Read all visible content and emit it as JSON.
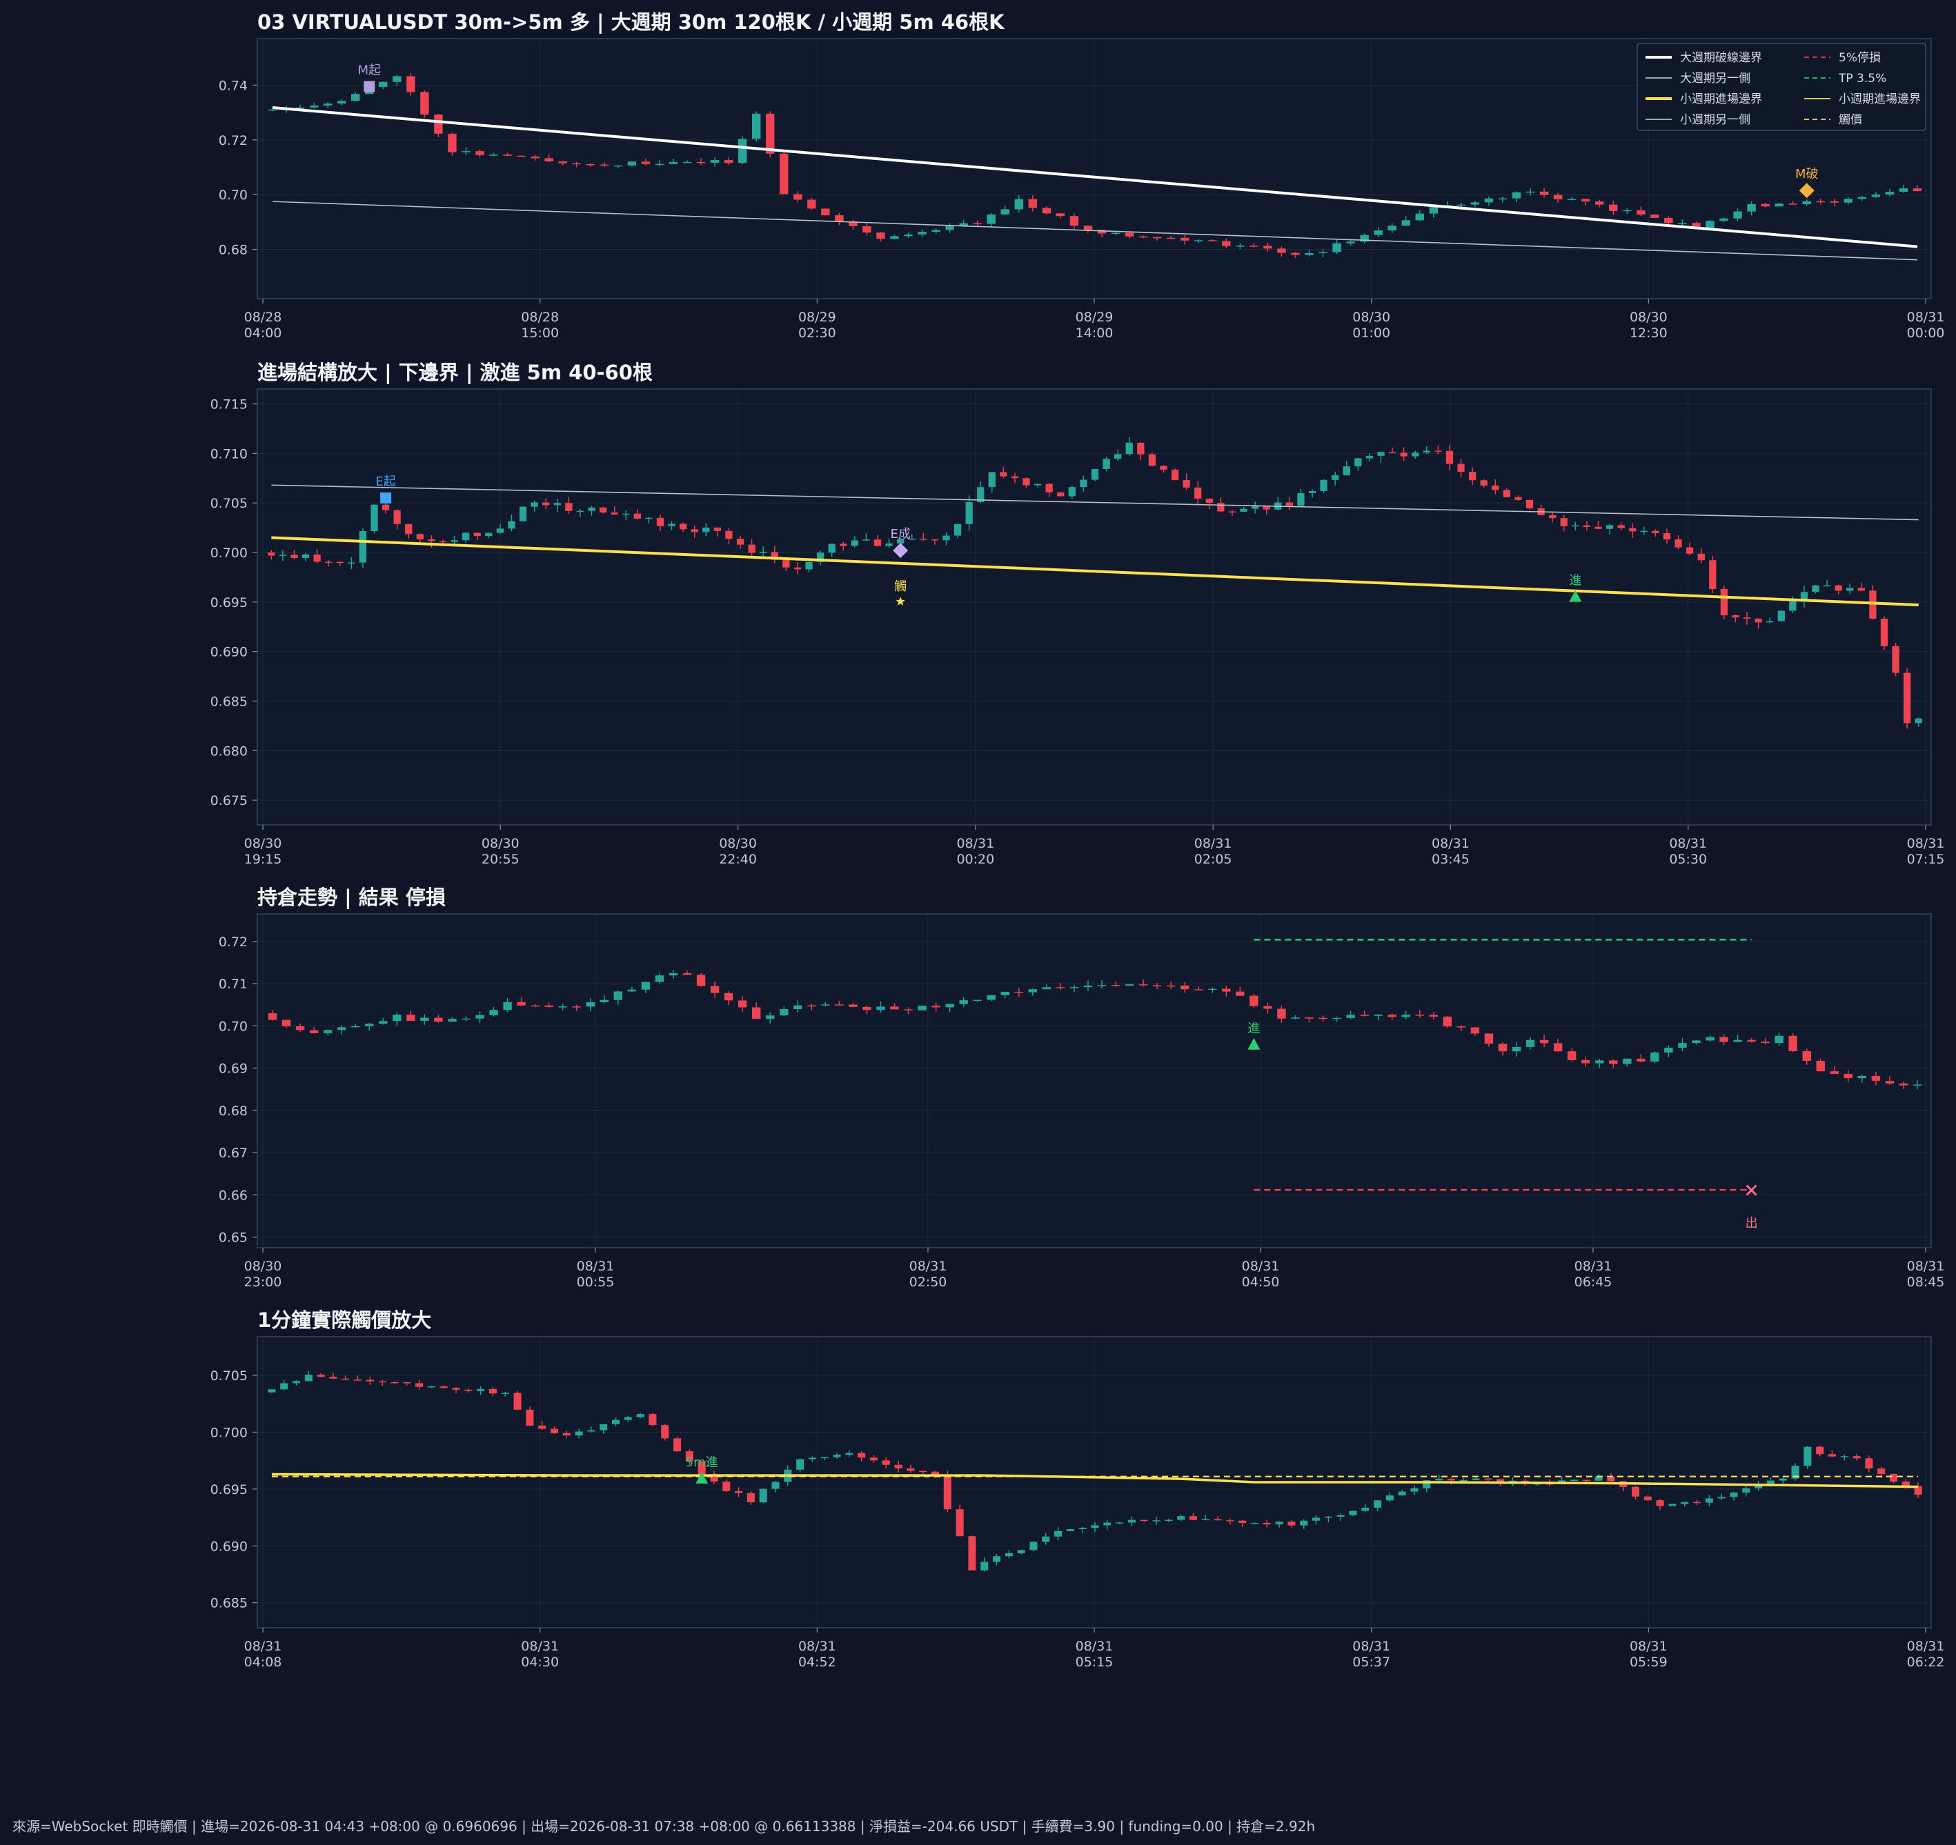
{
  "colors": {
    "background": "#0d1526",
    "panel": "#111a2c",
    "frame": "#3a4459",
    "grid": "#1f2a3e",
    "text": "#c3c8d2",
    "up": "#26a69a",
    "down": "#ef4350",
    "big_break": "#ffffff",
    "big_other": "#b9bec8",
    "small_entry": "#ffe14d",
    "stop": "#ef4350",
    "tp": "#2ecc71",
    "trigger": "#ffe14d",
    "entry_mark": "#2ecc71",
    "big_start_mark": "#b39ddb",
    "small_start_mark": "#42a5f5",
    "small_done_mark": "#c5a9f5",
    "exit_mark": "#ff6b8a",
    "big_done_mark": "#f5b041"
  },
  "footer": "來源=WebSocket 即時觸價 | 進場=2026-08-31 04:43 +08:00 @ 0.6960696 | 出場=2026-08-31 07:38 +08:00 @ 0.66113388 | 淨損益=-204.66 USDT | 手續費=3.90 | funding=0.00 | 持倉=2.92h",
  "chart_data": [
    {
      "type": "candlestick",
      "title": "03 VIRTUALUSDT 30m->5m 多 | 大週期 30m 120根K / 小週期 5m 46根K",
      "ylim": [
        0.662,
        0.757
      ],
      "yticks": [
        "0.68",
        "0.70",
        "0.72",
        "0.74"
      ],
      "xticks": [
        [
          "08/28",
          "04:00"
        ],
        [
          "08/28",
          "15:00"
        ],
        [
          "08/29",
          "02:30"
        ],
        [
          "08/29",
          "14:00"
        ],
        [
          "08/30",
          "01:00"
        ],
        [
          "08/30",
          "12:30"
        ],
        [
          "08/31",
          "00:00"
        ]
      ],
      "candle_count": 120,
      "seed": 11,
      "anchors": [
        [
          0,
          0.731
        ],
        [
          6,
          0.734
        ],
        [
          10,
          0.744
        ],
        [
          14,
          0.716
        ],
        [
          24,
          0.711
        ],
        [
          34,
          0.712
        ],
        [
          36,
          0.73
        ],
        [
          38,
          0.7
        ],
        [
          45,
          0.684
        ],
        [
          52,
          0.69
        ],
        [
          55,
          0.698
        ],
        [
          60,
          0.687
        ],
        [
          70,
          0.682
        ],
        [
          76,
          0.678
        ],
        [
          80,
          0.685
        ],
        [
          85,
          0.695
        ],
        [
          92,
          0.701
        ],
        [
          96,
          0.697
        ],
        [
          104,
          0.688
        ],
        [
          108,
          0.696
        ],
        [
          113,
          0.697
        ],
        [
          119,
          0.702
        ]
      ],
      "lines": [
        {
          "name": "大週期破線邊界",
          "from": [
            0,
            0.7318
          ],
          "to": [
            119,
            0.681
          ],
          "color": "#ffffff",
          "width": 4
        },
        {
          "name": "大週期另一側",
          "from": [
            0,
            0.6975
          ],
          "to": [
            119,
            0.6762
          ],
          "color": "#b9bec8",
          "width": 1.6
        }
      ],
      "markers": [
        {
          "label": "M起",
          "shape": "square",
          "index": 7,
          "price": 0.7395,
          "color": "#b39ddb"
        },
        {
          "label": "M破",
          "shape": "diamond",
          "index": 111,
          "price": 0.7015,
          "color": "#f5b041"
        }
      ],
      "legend": {
        "entries": [
          {
            "label": "大週期破線邊界",
            "color": "#ffffff",
            "style": "solid-thick"
          },
          {
            "label": "5%停損",
            "color": "#ef4350",
            "style": "dashed"
          },
          {
            "label": "大週期另一側",
            "color": "#b9bec8",
            "style": "solid"
          },
          {
            "label": "TP 3.5%",
            "color": "#2ecc71",
            "style": "dashed"
          },
          {
            "label": "小週期進場邊界",
            "color": "#ffe14d",
            "style": "solid-thick"
          },
          {
            "label": "小週期進場邊界",
            "color": "#ffe14d",
            "style": "solid"
          },
          {
            "label": "小週期另一側",
            "color": "#b9bec8",
            "style": "solid"
          },
          {
            "label": "觸價",
            "color": "#ffe14d",
            "style": "dashed"
          }
        ],
        "placement": "top-right"
      }
    },
    {
      "type": "candlestick",
      "title": "進場結構放大 | 下邊界 | 激進 5m 40-60根",
      "ylim": [
        0.6725,
        0.7165
      ],
      "yticks": [
        "0.675",
        "0.680",
        "0.685",
        "0.690",
        "0.695",
        "0.700",
        "0.705",
        "0.710",
        "0.715"
      ],
      "xticks": [
        [
          "08/30",
          "19:15"
        ],
        [
          "08/30",
          "20:55"
        ],
        [
          "08/30",
          "22:40"
        ],
        [
          "08/31",
          "00:20"
        ],
        [
          "08/31",
          "02:05"
        ],
        [
          "08/31",
          "03:45"
        ],
        [
          "08/31",
          "05:30"
        ],
        [
          "08/31",
          "07:15"
        ]
      ],
      "candle_count": 145,
      "seed": 23,
      "anchors": [
        [
          0,
          0.7
        ],
        [
          8,
          0.699
        ],
        [
          10,
          0.705
        ],
        [
          14,
          0.701
        ],
        [
          20,
          0.702
        ],
        [
          24,
          0.705
        ],
        [
          30,
          0.704
        ],
        [
          40,
          0.702
        ],
        [
          47,
          0.698
        ],
        [
          50,
          0.701
        ],
        [
          56,
          0.701
        ],
        [
          60,
          0.7015
        ],
        [
          64,
          0.708
        ],
        [
          70,
          0.706
        ],
        [
          76,
          0.711
        ],
        [
          80,
          0.707
        ],
        [
          84,
          0.704
        ],
        [
          90,
          0.705
        ],
        [
          97,
          0.71
        ],
        [
          103,
          0.71
        ],
        [
          108,
          0.706
        ],
        [
          114,
          0.703
        ],
        [
          122,
          0.702
        ],
        [
          126,
          0.699
        ],
        [
          128,
          0.694
        ],
        [
          132,
          0.693
        ],
        [
          136,
          0.697
        ],
        [
          140,
          0.696
        ],
        [
          143,
          0.688
        ],
        [
          144,
          0.683
        ]
      ],
      "lines": [
        {
          "name": "小週期另一側",
          "from": [
            0,
            0.7068
          ],
          "to": [
            144,
            0.7033
          ],
          "color": "#b9bec8",
          "width": 1.6
        },
        {
          "name": "小週期進場邊界",
          "from": [
            0,
            0.7015
          ],
          "to": [
            144,
            0.6947
          ],
          "color": "#ffe14d",
          "width": 4
        }
      ],
      "markers": [
        {
          "label": "E起",
          "shape": "square",
          "index": 10,
          "price": 0.7055,
          "color": "#42a5f5"
        },
        {
          "label": "E成",
          "shape": "diamond",
          "index": 55,
          "price": 0.7002,
          "color": "#c5a9f5"
        },
        {
          "label": "觸",
          "shape": "star",
          "index": 55,
          "price": 0.6963,
          "color": "#ffe14d"
        },
        {
          "label": "進",
          "shape": "triangle",
          "index": 114,
          "price": 0.6955,
          "color": "#2ecc71"
        }
      ]
    },
    {
      "type": "candlestick",
      "title": "持倉走勢 | 結果 停損",
      "ylim": [
        0.6475,
        0.7265
      ],
      "yticks": [
        "0.65",
        "0.66",
        "0.67",
        "0.68",
        "0.69",
        "0.70",
        "0.71",
        "0.72"
      ],
      "xticks": [
        [
          "08/30",
          "23:00"
        ],
        [
          "08/31",
          "00:55"
        ],
        [
          "08/31",
          "02:50"
        ],
        [
          "08/31",
          "04:50"
        ],
        [
          "08/31",
          "06:45"
        ],
        [
          "08/31",
          "08:45"
        ]
      ],
      "candle_count": 120,
      "seed": 37,
      "anchors": [
        [
          0,
          0.703
        ],
        [
          4,
          0.698
        ],
        [
          10,
          0.702
        ],
        [
          14,
          0.701
        ],
        [
          18,
          0.705
        ],
        [
          24,
          0.705
        ],
        [
          27,
          0.709
        ],
        [
          29,
          0.712
        ],
        [
          31,
          0.712
        ],
        [
          33,
          0.708
        ],
        [
          36,
          0.702
        ],
        [
          40,
          0.705
        ],
        [
          46,
          0.704
        ],
        [
          50,
          0.705
        ],
        [
          55,
          0.708
        ],
        [
          60,
          0.71
        ],
        [
          64,
          0.71
        ],
        [
          70,
          0.708
        ],
        [
          74,
          0.702
        ],
        [
          78,
          0.702
        ],
        [
          84,
          0.703
        ],
        [
          88,
          0.698
        ],
        [
          90,
          0.694
        ],
        [
          92,
          0.697
        ],
        [
          96,
          0.691
        ],
        [
          100,
          0.692
        ],
        [
          104,
          0.697
        ],
        [
          108,
          0.696
        ],
        [
          110,
          0.697
        ],
        [
          113,
          0.689
        ],
        [
          118,
          0.687
        ],
        [
          124,
          0.683
        ],
        [
          128,
          0.671
        ],
        [
          131,
          0.662
        ],
        [
          133,
          0.664
        ],
        [
          136,
          0.67
        ],
        [
          140,
          0.671
        ],
        [
          144,
          0.673
        ]
      ],
      "lines": [
        {
          "name": "TP 3.5%",
          "from": [
            71,
            0.7204
          ],
          "to": [
            107,
            0.7204
          ],
          "color": "#2ecc71",
          "width": 2.5,
          "dash": "9 6"
        },
        {
          "name": "5%停損",
          "from": [
            71,
            0.6612
          ],
          "to": [
            107,
            0.6612
          ],
          "color": "#ef4350",
          "width": 2.5,
          "dash": "9 6"
        }
      ],
      "markers": [
        {
          "label": "進",
          "shape": "triangle",
          "index": 71,
          "price": 0.6955,
          "color": "#2ecc71"
        },
        {
          "label": "出",
          "shape": "x",
          "index": 107,
          "price": 0.6611,
          "color": "#ff6b8a"
        }
      ]
    },
    {
      "type": "candlestick",
      "title": "1分鐘實際觸價放大",
      "ylim": [
        0.6828,
        0.7084
      ],
      "yticks": [
        "0.685",
        "0.690",
        "0.695",
        "0.700",
        "0.705"
      ],
      "xticks": [
        [
          "08/31",
          "04:08"
        ],
        [
          "08/31",
          "04:30"
        ],
        [
          "08/31",
          "04:52"
        ],
        [
          "08/31",
          "05:15"
        ],
        [
          "08/31",
          "05:37"
        ],
        [
          "08/31",
          "05:59"
        ],
        [
          "08/31",
          "06:22"
        ]
      ],
      "candle_count": 135,
      "seed": 53,
      "anchors": [
        [
          0,
          0.7035
        ],
        [
          4,
          0.705
        ],
        [
          10,
          0.7045
        ],
        [
          20,
          0.7035
        ],
        [
          22,
          0.7005
        ],
        [
          25,
          0.6995
        ],
        [
          29,
          0.701
        ],
        [
          31,
          0.7015
        ],
        [
          34,
          0.6985
        ],
        [
          37,
          0.6955
        ],
        [
          40,
          0.694
        ],
        [
          44,
          0.6975
        ],
        [
          48,
          0.698
        ],
        [
          52,
          0.697
        ],
        [
          55,
          0.696
        ],
        [
          58,
          0.688
        ],
        [
          60,
          0.689
        ],
        [
          66,
          0.6915
        ],
        [
          74,
          0.6925
        ],
        [
          80,
          0.692
        ],
        [
          85,
          0.692
        ],
        [
          90,
          0.6935
        ],
        [
          96,
          0.696
        ],
        [
          104,
          0.6955
        ],
        [
          109,
          0.696
        ],
        [
          114,
          0.6935
        ],
        [
          118,
          0.694
        ],
        [
          124,
          0.696
        ],
        [
          126,
          0.6985
        ],
        [
          130,
          0.6975
        ],
        [
          136,
          0.694
        ],
        [
          142,
          0.6915
        ],
        [
          148,
          0.6905
        ],
        [
          150,
          0.689
        ]
      ],
      "lines": [
        {
          "name": "觸價",
          "from": [
            0,
            0.6961
          ],
          "to": [
            134,
            0.6961
          ],
          "color": "#ffe14d",
          "width": 2.2,
          "dash": "9 6"
        },
        {
          "name": "小週期進場邊界",
          "series": [
            [
              0,
              0.6963
            ],
            [
              25,
              0.6962
            ],
            [
              58,
              0.6962
            ],
            [
              74,
              0.6959
            ],
            [
              80,
              0.6956
            ],
            [
              95,
              0.6956
            ],
            [
              110,
              0.6955
            ],
            [
              134,
              0.6952
            ]
          ],
          "color": "#ffe14d",
          "width": 3.5
        }
      ],
      "markers": [
        {
          "label": "5m進",
          "shape": "triangle",
          "index": 35,
          "price": 0.6959,
          "color": "#2ecc71"
        }
      ]
    }
  ]
}
